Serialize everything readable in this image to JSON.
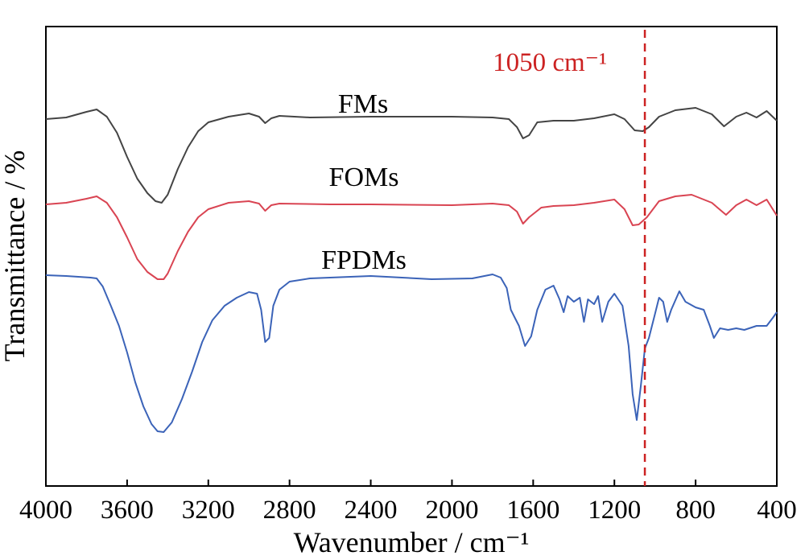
{
  "chart_data": {
    "type": "line",
    "xlabel": "Wavenumber / cm⁻¹",
    "ylabel": "Transmittance / %",
    "xlim": [
      4000,
      400
    ],
    "x_reversed": true,
    "x_ticks": [
      "4000",
      "3600",
      "3200",
      "2800",
      "2400",
      "2000",
      "1600",
      "1200",
      "800",
      "400"
    ],
    "y_ticks_shown": false,
    "grid": false,
    "reference_line": {
      "x": 1050,
      "label": "1050 cm⁻¹",
      "color": "#cc2222",
      "style": "dashed"
    },
    "series": [
      {
        "name": "FMs",
        "color": "#444444",
        "points": [
          [
            4000,
            148
          ],
          [
            3900,
            146
          ],
          [
            3800,
            139
          ],
          [
            3750,
            136
          ],
          [
            3700,
            145
          ],
          [
            3650,
            165
          ],
          [
            3600,
            195
          ],
          [
            3550,
            222
          ],
          [
            3500,
            240
          ],
          [
            3460,
            250
          ],
          [
            3430,
            252
          ],
          [
            3400,
            242
          ],
          [
            3350,
            210
          ],
          [
            3300,
            183
          ],
          [
            3250,
            163
          ],
          [
            3200,
            152
          ],
          [
            3100,
            145
          ],
          [
            3000,
            141
          ],
          [
            2950,
            145
          ],
          [
            2920,
            153
          ],
          [
            2890,
            147
          ],
          [
            2850,
            144
          ],
          [
            2700,
            146
          ],
          [
            2400,
            145
          ],
          [
            2000,
            145
          ],
          [
            1800,
            146
          ],
          [
            1720,
            148
          ],
          [
            1680,
            158
          ],
          [
            1650,
            172
          ],
          [
            1620,
            168
          ],
          [
            1580,
            152
          ],
          [
            1500,
            150
          ],
          [
            1400,
            150
          ],
          [
            1300,
            147
          ],
          [
            1200,
            142
          ],
          [
            1150,
            148
          ],
          [
            1100,
            162
          ],
          [
            1060,
            163
          ],
          [
            1030,
            158
          ],
          [
            980,
            145
          ],
          [
            900,
            137
          ],
          [
            800,
            134
          ],
          [
            720,
            142
          ],
          [
            660,
            157
          ],
          [
            600,
            145
          ],
          [
            550,
            140
          ],
          [
            500,
            146
          ],
          [
            450,
            138
          ],
          [
            400,
            150
          ]
        ]
      },
      {
        "name": "FOMs",
        "color": "#d94452",
        "points": [
          [
            4000,
            254
          ],
          [
            3900,
            252
          ],
          [
            3800,
            247
          ],
          [
            3750,
            244
          ],
          [
            3700,
            252
          ],
          [
            3650,
            270
          ],
          [
            3600,
            295
          ],
          [
            3550,
            322
          ],
          [
            3500,
            338
          ],
          [
            3450,
            347
          ],
          [
            3420,
            347
          ],
          [
            3400,
            340
          ],
          [
            3350,
            312
          ],
          [
            3300,
            288
          ],
          [
            3250,
            270
          ],
          [
            3200,
            260
          ],
          [
            3100,
            252
          ],
          [
            3000,
            250
          ],
          [
            2950,
            253
          ],
          [
            2920,
            262
          ],
          [
            2890,
            255
          ],
          [
            2850,
            253
          ],
          [
            2600,
            254
          ],
          [
            2400,
            254
          ],
          [
            2000,
            255
          ],
          [
            1800,
            253
          ],
          [
            1720,
            255
          ],
          [
            1680,
            263
          ],
          [
            1650,
            278
          ],
          [
            1620,
            270
          ],
          [
            1560,
            258
          ],
          [
            1500,
            256
          ],
          [
            1400,
            255
          ],
          [
            1300,
            252
          ],
          [
            1200,
            248
          ],
          [
            1150,
            260
          ],
          [
            1110,
            280
          ],
          [
            1080,
            279
          ],
          [
            1040,
            270
          ],
          [
            980,
            250
          ],
          [
            900,
            244
          ],
          [
            820,
            242
          ],
          [
            720,
            252
          ],
          [
            650,
            267
          ],
          [
            600,
            255
          ],
          [
            550,
            248
          ],
          [
            500,
            255
          ],
          [
            450,
            248
          ],
          [
            400,
            268
          ]
        ]
      },
      {
        "name": "FPDMs",
        "color": "#3b63b8",
        "points": [
          [
            4000,
            342
          ],
          [
            3900,
            343
          ],
          [
            3780,
            345
          ],
          [
            3750,
            346
          ],
          [
            3720,
            356
          ],
          [
            3680,
            380
          ],
          [
            3640,
            405
          ],
          [
            3600,
            438
          ],
          [
            3560,
            475
          ],
          [
            3520,
            505
          ],
          [
            3480,
            527
          ],
          [
            3450,
            536
          ],
          [
            3420,
            537
          ],
          [
            3380,
            525
          ],
          [
            3330,
            496
          ],
          [
            3280,
            462
          ],
          [
            3230,
            425
          ],
          [
            3180,
            398
          ],
          [
            3120,
            380
          ],
          [
            3060,
            370
          ],
          [
            3000,
            363
          ],
          [
            2960,
            365
          ],
          [
            2940,
            385
          ],
          [
            2920,
            425
          ],
          [
            2900,
            420
          ],
          [
            2880,
            380
          ],
          [
            2850,
            360
          ],
          [
            2800,
            350
          ],
          [
            2700,
            346
          ],
          [
            2400,
            343
          ],
          [
            2100,
            347
          ],
          [
            1900,
            346
          ],
          [
            1800,
            341
          ],
          [
            1760,
            345
          ],
          [
            1730,
            358
          ],
          [
            1710,
            385
          ],
          [
            1690,
            395
          ],
          [
            1670,
            405
          ],
          [
            1640,
            430
          ],
          [
            1610,
            418
          ],
          [
            1580,
            385
          ],
          [
            1540,
            360
          ],
          [
            1500,
            355
          ],
          [
            1470,
            372
          ],
          [
            1450,
            388
          ],
          [
            1430,
            368
          ],
          [
            1400,
            375
          ],
          [
            1370,
            370
          ],
          [
            1350,
            400
          ],
          [
            1330,
            372
          ],
          [
            1300,
            378
          ],
          [
            1280,
            368
          ],
          [
            1260,
            400
          ],
          [
            1230,
            375
          ],
          [
            1200,
            365
          ],
          [
            1160,
            380
          ],
          [
            1130,
            430
          ],
          [
            1110,
            490
          ],
          [
            1090,
            522
          ],
          [
            1070,
            480
          ],
          [
            1050,
            433
          ],
          [
            1030,
            420
          ],
          [
            1000,
            390
          ],
          [
            980,
            370
          ],
          [
            960,
            375
          ],
          [
            940,
            400
          ],
          [
            920,
            385
          ],
          [
            880,
            362
          ],
          [
            850,
            375
          ],
          [
            800,
            382
          ],
          [
            760,
            385
          ],
          [
            730,
            405
          ],
          [
            710,
            420
          ],
          [
            680,
            408
          ],
          [
            640,
            410
          ],
          [
            600,
            408
          ],
          [
            560,
            410
          ],
          [
            500,
            405
          ],
          [
            450,
            405
          ],
          [
            420,
            395
          ],
          [
            400,
            388
          ]
        ]
      }
    ]
  }
}
